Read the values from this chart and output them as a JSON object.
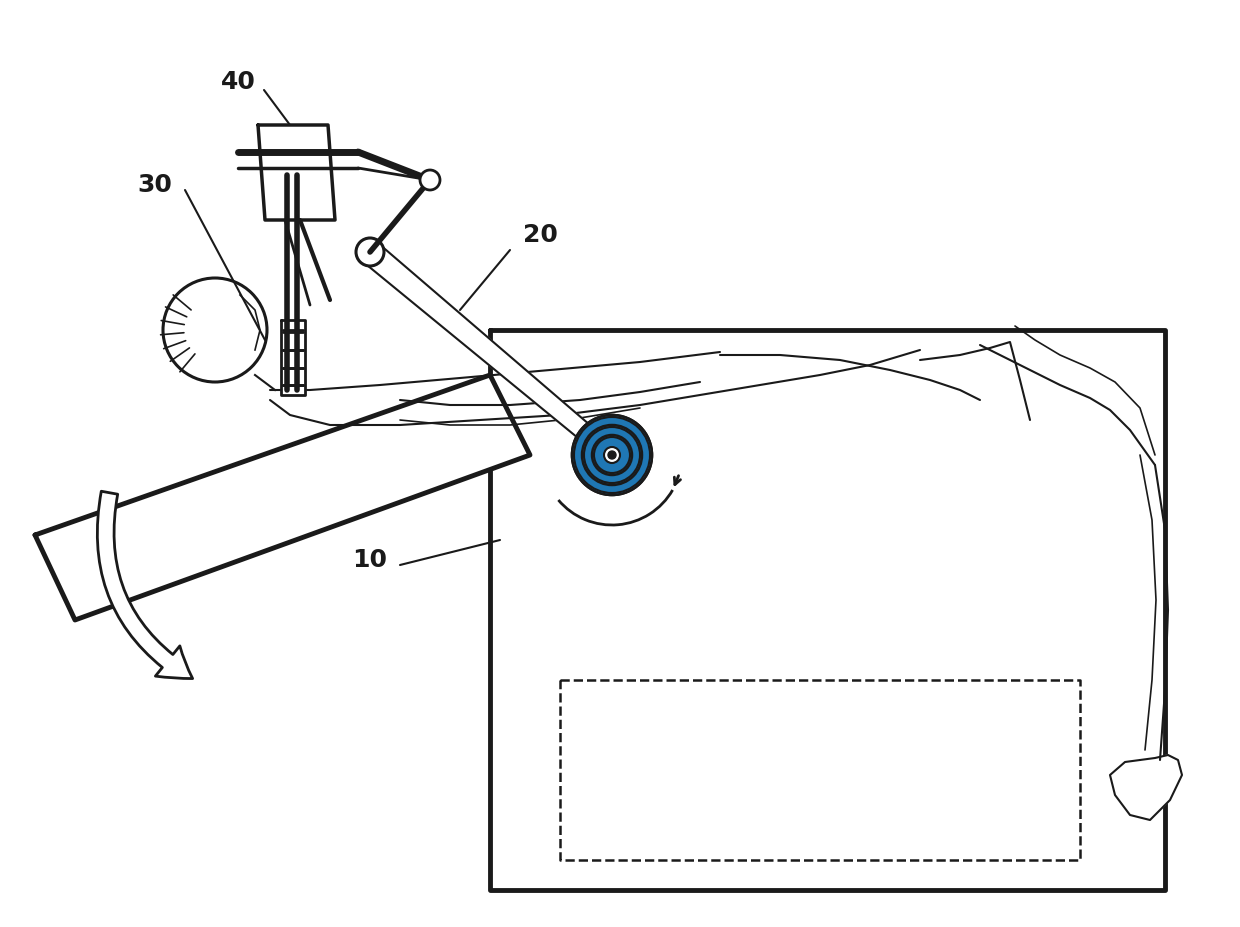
{
  "background_color": "#ffffff",
  "line_color": "#1a1a1a",
  "lw": 2.2,
  "tlw": 3.5,
  "label_40": "40",
  "label_30": "30",
  "label_20": "20",
  "label_10": "10",
  "font_size": 18
}
